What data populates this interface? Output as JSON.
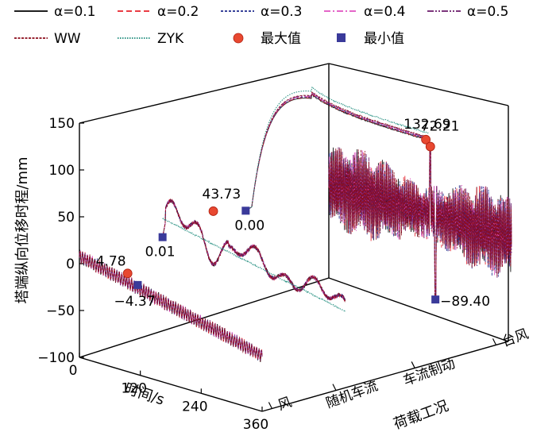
{
  "legend": [
    {
      "key": "a01",
      "label": "α=0.1",
      "color": "#000000",
      "dash": "none"
    },
    {
      "key": "a02",
      "label": "α=0.2",
      "color": "#e8202a",
      "dash": "7 4"
    },
    {
      "key": "a03",
      "label": "α=0.3",
      "color": "#1f2a8c",
      "dash": "3 2"
    },
    {
      "key": "a04",
      "label": "α=0.4",
      "color": "#e050c0",
      "dash": "8 3 2 3"
    },
    {
      "key": "a05",
      "label": "α=0.5",
      "color": "#6a1a6a",
      "dash": "8 2 2 2 2 2"
    },
    {
      "key": "ww",
      "label": "WW",
      "color": "#8b0a1a",
      "dash": "3 1.5"
    },
    {
      "key": "zyk",
      "label": "ZYK",
      "color": "#1a8a7a",
      "dash": "1.5 1.5"
    },
    {
      "key": "max",
      "label": "最大值",
      "color": "#e84830",
      "marker": "circle"
    },
    {
      "key": "min",
      "label": "最小值",
      "color": "#3a3a9a",
      "marker": "square"
    }
  ],
  "chart_data": {
    "type": "line",
    "subtype": "3d-waterfall",
    "ylabel": "塔端纵向位移时程/mm",
    "xlabel": "时间/s",
    "zlabel": "荷载工况",
    "yticks": [
      -100,
      -50,
      0,
      50,
      100,
      150
    ],
    "ylim": [
      -100,
      150
    ],
    "xticks": [
      0,
      120,
      240,
      360
    ],
    "xlim": [
      0,
      360
    ],
    "zcategories": [
      "风",
      "随机车流",
      "车流制动",
      "台风"
    ],
    "series_per_case": [
      {
        "case": "风",
        "max": {
          "t": 95,
          "value": 4.78,
          "label": "4.78"
        },
        "min": {
          "t": 115,
          "value": -4.37,
          "label": "-4.37"
        }
      },
      {
        "case": "随机车流",
        "max": {
          "t": 100,
          "value": 43.73,
          "label": "43.73"
        },
        "min": {
          "t": 0,
          "value": 0.01,
          "label": "0.01"
        },
        "zyk_note": "ZYK curve decreases smoothly from about 20 to -20"
      },
      {
        "case": "车流制动",
        "max": {
          "t": 355,
          "value": 132.69,
          "label": "132.69"
        },
        "min": {
          "t": 0,
          "value": 0.0,
          "label": "0.00"
        }
      },
      {
        "case": "台风",
        "max": {
          "t": 200,
          "value": 72.21,
          "label": "72.21"
        },
        "min": {
          "t": 210,
          "value": -89.4,
          "label": "-89.40"
        }
      }
    ],
    "grid": false,
    "legend_position": "top"
  }
}
